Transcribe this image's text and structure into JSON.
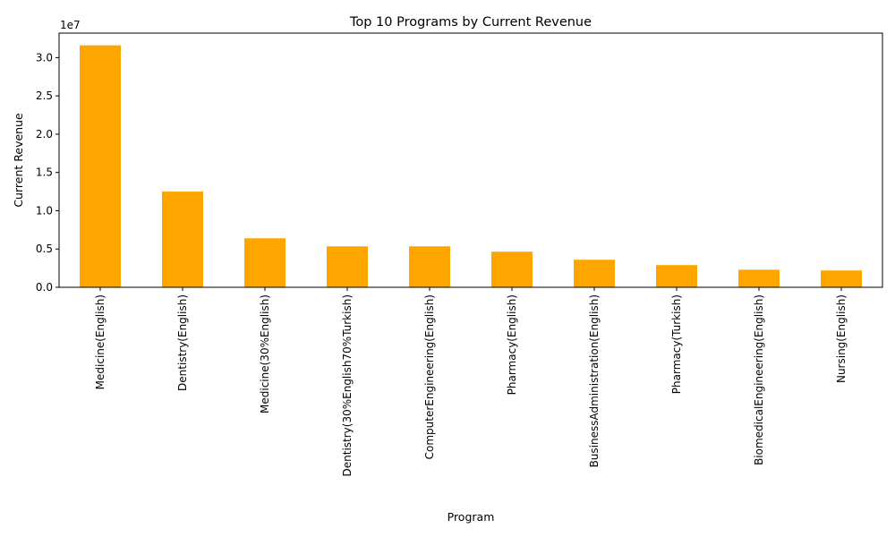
{
  "chart_data": {
    "type": "bar",
    "title": "Top 10 Programs by Current Revenue",
    "xlabel": "Program",
    "ylabel": "Current Revenue",
    "offset_label": "1e7",
    "categories": [
      "Medicine(English)",
      "Dentistry(English)",
      "Medicine(30%English)",
      "Dentistry(30%English70%Turkish)",
      "ComputerEngineering(English)",
      "Pharmacy(English)",
      "BusinessAdministration(English)",
      "Pharmacy(Turkish)",
      "BiomedicalEngineering(English)",
      "Nursing(English)"
    ],
    "values": [
      31600000,
      12500000,
      6400000,
      5350000,
      5350000,
      4650000,
      3600000,
      2900000,
      2300000,
      2200000
    ],
    "ylim": [
      0,
      33200000
    ],
    "yticks": [
      0,
      5000000,
      10000000,
      15000000,
      20000000,
      25000000,
      30000000
    ],
    "ytick_labels": [
      "0.0",
      "0.5",
      "1.0",
      "1.5",
      "2.0",
      "2.5",
      "3.0"
    ],
    "bar_color": "#ffa500",
    "grid": false,
    "legend": "none"
  }
}
